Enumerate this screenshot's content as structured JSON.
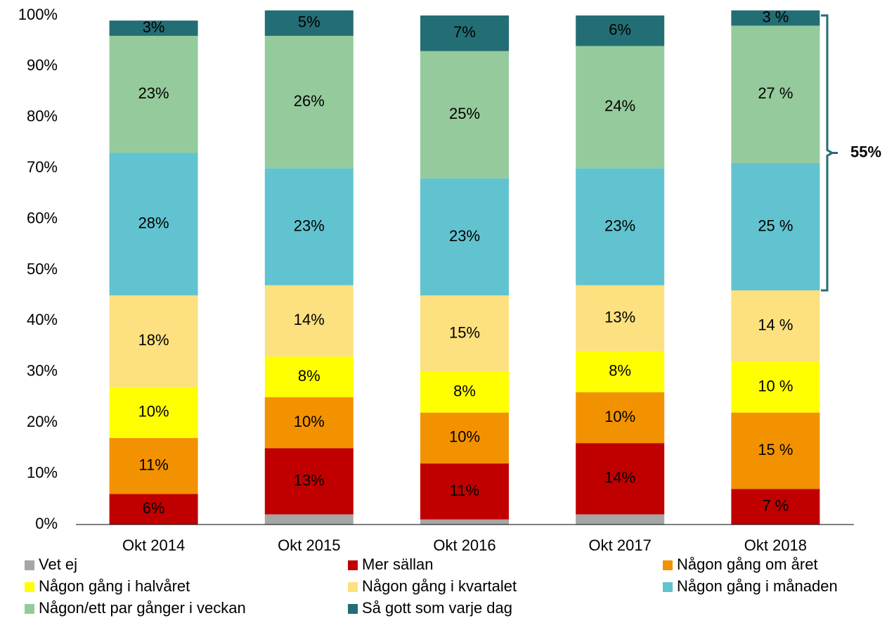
{
  "chart_data": {
    "type": "stacked_bar",
    "categories": [
      "Okt 2014",
      "Okt 2015",
      "Okt 2016",
      "Okt 2017",
      "Okt 2018"
    ],
    "series": [
      {
        "name": "Vet ej",
        "color": "#a6a6a6",
        "values": [
          0,
          2,
          1,
          2,
          0
        ],
        "value_labels": [
          null,
          "2%",
          "1%",
          "2%",
          null
        ]
      },
      {
        "name": "Mer sällan",
        "color": "#c00000",
        "values": [
          6,
          13,
          11,
          14,
          7
        ],
        "value_labels": [
          "6%",
          "13%",
          "11%",
          "14%",
          "7 %"
        ]
      },
      {
        "name": "Någon gång om året",
        "color": "#f39200",
        "values": [
          11,
          10,
          10,
          10,
          15
        ],
        "value_labels": [
          "11%",
          "10%",
          "10%",
          "10%",
          "15 %"
        ]
      },
      {
        "name": "Någon gång i halvåret",
        "color": "#ffff00",
        "values": [
          10,
          8,
          8,
          8,
          10
        ],
        "value_labels": [
          "10%",
          "8%",
          "8%",
          "8%",
          "10 %"
        ]
      },
      {
        "name": "Någon gång i kvartalet",
        "color": "#fde07f",
        "values": [
          18,
          14,
          15,
          13,
          14
        ],
        "value_labels": [
          "18%",
          "14%",
          "15%",
          "13%",
          "14 %"
        ]
      },
      {
        "name": "Någon gång i månaden",
        "color": "#62c3d0",
        "values": [
          28,
          23,
          23,
          23,
          25
        ],
        "value_labels": [
          "28%",
          "23%",
          "23%",
          "23%",
          "25 %"
        ]
      },
      {
        "name": "Någon/ett par gånger i veckan",
        "color": "#95cb9c",
        "values": [
          23,
          26,
          25,
          24,
          27
        ],
        "value_labels": [
          "23%",
          "26%",
          "25%",
          "24%",
          "27 %"
        ]
      },
      {
        "name": "Så gott som varje dag",
        "color": "#236e74",
        "values": [
          3,
          5,
          7,
          6,
          3
        ],
        "value_labels": [
          "3%",
          "5%",
          "7%",
          "6%",
          "3 %"
        ]
      }
    ],
    "ylim": [
      0,
      100
    ],
    "yticks": [
      {
        "value": 0,
        "label": "0%"
      },
      {
        "value": 10,
        "label": "10%"
      },
      {
        "value": 20,
        "label": "20%"
      },
      {
        "value": 30,
        "label": "30%"
      },
      {
        "value": 40,
        "label": "40%"
      },
      {
        "value": 50,
        "label": "50%"
      },
      {
        "value": 60,
        "label": "60%"
      },
      {
        "value": 70,
        "label": "70%"
      },
      {
        "value": 80,
        "label": "80%"
      },
      {
        "value": 90,
        "label": "90%"
      },
      {
        "value": 100,
        "label": "100%"
      }
    ],
    "annotation": "55%"
  }
}
